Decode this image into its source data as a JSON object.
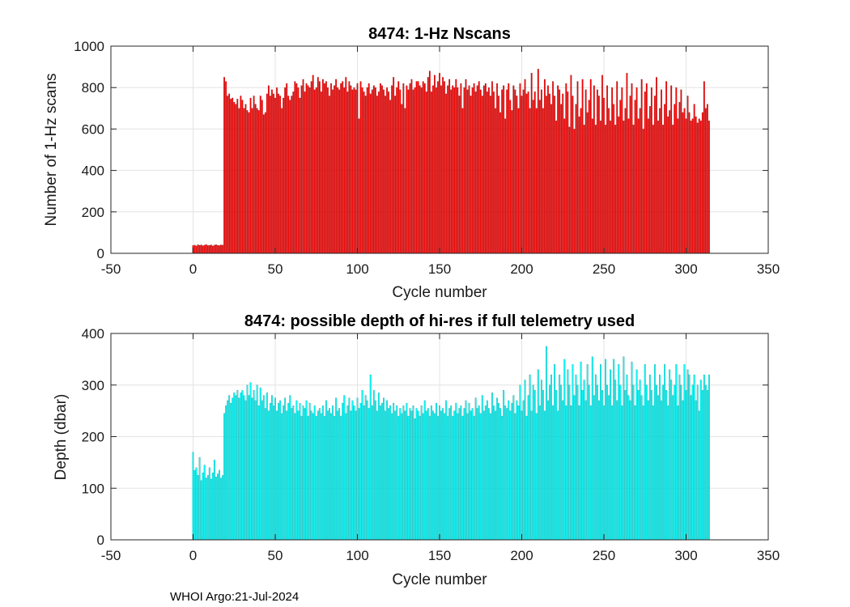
{
  "chart_data": [
    {
      "type": "bar",
      "title": "8474: 1-Hz Nscans",
      "xlabel": "Cycle number",
      "ylabel": "Number of 1-Hz scans",
      "xlim": [
        -50,
        350
      ],
      "ylim": [
        0,
        1000
      ],
      "xticks": [
        -50,
        0,
        50,
        100,
        150,
        200,
        250,
        300,
        350
      ],
      "yticks": [
        0,
        200,
        400,
        600,
        800,
        1000
      ],
      "xtick_labels": [
        "-50",
        "0",
        "50",
        "100",
        "150",
        "200",
        "250",
        "300",
        "350"
      ],
      "ytick_labels": [
        "0",
        "200",
        "400",
        "600",
        "800",
        "1000"
      ],
      "grid": true,
      "color": "#ff0000",
      "x_start": 0,
      "values": [
        38,
        40,
        36,
        42,
        39,
        41,
        37,
        40,
        43,
        38,
        39,
        41,
        36,
        40,
        42,
        39,
        38,
        41,
        40,
        850,
        830,
        760,
        770,
        745,
        750,
        730,
        720,
        745,
        700,
        760,
        740,
        700,
        720,
        690,
        680,
        750,
        700,
        760,
        720,
        700,
        690,
        760,
        740,
        670,
        680,
        770,
        810,
        760,
        790,
        770,
        750,
        800,
        770,
        760,
        700,
        750,
        800,
        820,
        760,
        740,
        760,
        780,
        830,
        820,
        800,
        750,
        810,
        840,
        780,
        820,
        810,
        800,
        830,
        860,
        790,
        800,
        850,
        830,
        780,
        840,
        820,
        830,
        800,
        760,
        820,
        790,
        810,
        840,
        800,
        790,
        820,
        830,
        800,
        850,
        780,
        830,
        810,
        790,
        800,
        790,
        820,
        650,
        830,
        800,
        780,
        760,
        800,
        820,
        770,
        790,
        810,
        800,
        760,
        780,
        820,
        810,
        790,
        760,
        800,
        780,
        740,
        810,
        850,
        760,
        800,
        830,
        790,
        720,
        820,
        700,
        810,
        790,
        820,
        840,
        790,
        800,
        830,
        830,
        810,
        800,
        830,
        820,
        780,
        850,
        880,
        780,
        810,
        860,
        800,
        830,
        870,
        810,
        850,
        830,
        770,
        810,
        840,
        790,
        810,
        800,
        840,
        800,
        760,
        820,
        700,
        800,
        840,
        790,
        810,
        760,
        800,
        820,
        780,
        810,
        830,
        790,
        760,
        810,
        820,
        780,
        800,
        760,
        830,
        780,
        700,
        820,
        760,
        680,
        790,
        810,
        650,
        790,
        820,
        740,
        690,
        810,
        790,
        760,
        700,
        820,
        760,
        790,
        840,
        770,
        780,
        700,
        870,
        740,
        780,
        700,
        890,
        740,
        790,
        700,
        840,
        760,
        810,
        770,
        720,
        830,
        760,
        640,
        810,
        790,
        720,
        770,
        650,
        820,
        780,
        610,
        860,
        760,
        600,
        720,
        830,
        660,
        700,
        840,
        620,
        790,
        680,
        740,
        840,
        650,
        810,
        620,
        790,
        760,
        640,
        860,
        750,
        620,
        810,
        700,
        640,
        800,
        720,
        620,
        830,
        660,
        740,
        800,
        640,
        700,
        870,
        650,
        760,
        820,
        620,
        740,
        800,
        650,
        700,
        840,
        600,
        780,
        820,
        650,
        710,
        800,
        620,
        760,
        850,
        640,
        700,
        790,
        620,
        720,
        830,
        660,
        690,
        810,
        620,
        720,
        800,
        650,
        730,
        790,
        680,
        700,
        650,
        760,
        680,
        640,
        650,
        720,
        660,
        630,
        650,
        640,
        680,
        830,
        700,
        720,
        640
      ]
    },
    {
      "type": "bar",
      "title": "8474: possible depth of hi-res if full telemetry used",
      "xlabel": "Cycle number",
      "ylabel": "Depth (dbar)",
      "xlim": [
        -50,
        350
      ],
      "ylim": [
        0,
        400
      ],
      "xticks": [
        -50,
        0,
        50,
        100,
        150,
        200,
        250,
        300,
        350
      ],
      "yticks": [
        0,
        100,
        200,
        300,
        400
      ],
      "xtick_labels": [
        "-50",
        "0",
        "50",
        "100",
        "150",
        "200",
        "250",
        "300",
        "350"
      ],
      "ytick_labels": [
        "0",
        "100",
        "200",
        "300",
        "400"
      ],
      "grid": true,
      "color": "#00ffff",
      "x_start": 0,
      "values": [
        170,
        135,
        140,
        125,
        160,
        115,
        130,
        145,
        120,
        125,
        140,
        118,
        130,
        155,
        122,
        128,
        135,
        120,
        125,
        245,
        260,
        270,
        280,
        265,
        275,
        285,
        280,
        290,
        275,
        285,
        290,
        280,
        270,
        300,
        280,
        305,
        275,
        290,
        270,
        300,
        260,
        295,
        270,
        280,
        255,
        285,
        250,
        265,
        280,
        260,
        275,
        250,
        265,
        270,
        245,
        260,
        275,
        250,
        265,
        280,
        255,
        260,
        245,
        270,
        250,
        265,
        240,
        260,
        255,
        270,
        240,
        265,
        250,
        245,
        260,
        240,
        250,
        255,
        245,
        260,
        240,
        270,
        250,
        255,
        245,
        260,
        240,
        275,
        250,
        255,
        240,
        265,
        280,
        245,
        260,
        275,
        250,
        270,
        260,
        250,
        275,
        255,
        265,
        290,
        260,
        280,
        270,
        255,
        320,
        260,
        290,
        270,
        250,
        285,
        260,
        265,
        275,
        250,
        270,
        255,
        260,
        245,
        265,
        250,
        260,
        240,
        255,
        245,
        260,
        250,
        265,
        240,
        255,
        250,
        260,
        235,
        255,
        250,
        240,
        260,
        245,
        270,
        250,
        255,
        240,
        260,
        250,
        245,
        265,
        240,
        260,
        250,
        255,
        245,
        270,
        240,
        255,
        260,
        240,
        250,
        265,
        245,
        255,
        260,
        240,
        255,
        270,
        245,
        265,
        250,
        255,
        240,
        275,
        255,
        260,
        245,
        280,
        250,
        260,
        270,
        255,
        245,
        285,
        260,
        250,
        275,
        265,
        255,
        240,
        290,
        260,
        255,
        270,
        250,
        265,
        280,
        245,
        270,
        260,
        300,
        250,
        270,
        310,
        240,
        280,
        320,
        250,
        300,
        290,
        245,
        330,
        260,
        310,
        290,
        250,
        375,
        270,
        300,
        320,
        260,
        340,
        290,
        250,
        320,
        300,
        270,
        350,
        260,
        330,
        300,
        260,
        340,
        280,
        320,
        300,
        260,
        345,
        290,
        310,
        270,
        340,
        300,
        260,
        355,
        280,
        320,
        300,
        270,
        340,
        290,
        260,
        350,
        300,
        280,
        330,
        260,
        350,
        310,
        270,
        340,
        300,
        260,
        355,
        290,
        320,
        280,
        270,
        345,
        300,
        260,
        330,
        290,
        310,
        280,
        260,
        340,
        300,
        270,
        320,
        290,
        260,
        340,
        300,
        280,
        320,
        270,
        300,
        340,
        290,
        260,
        330,
        310,
        280,
        300,
        340,
        260,
        320,
        300,
        270,
        340,
        290,
        330,
        320,
        280,
        300,
        320,
        270,
        300,
        250,
        310,
        290,
        320,
        300,
        290,
        320
      ]
    }
  ],
  "footer": {
    "text": "WHOI Argo:21-Jul-2024"
  }
}
